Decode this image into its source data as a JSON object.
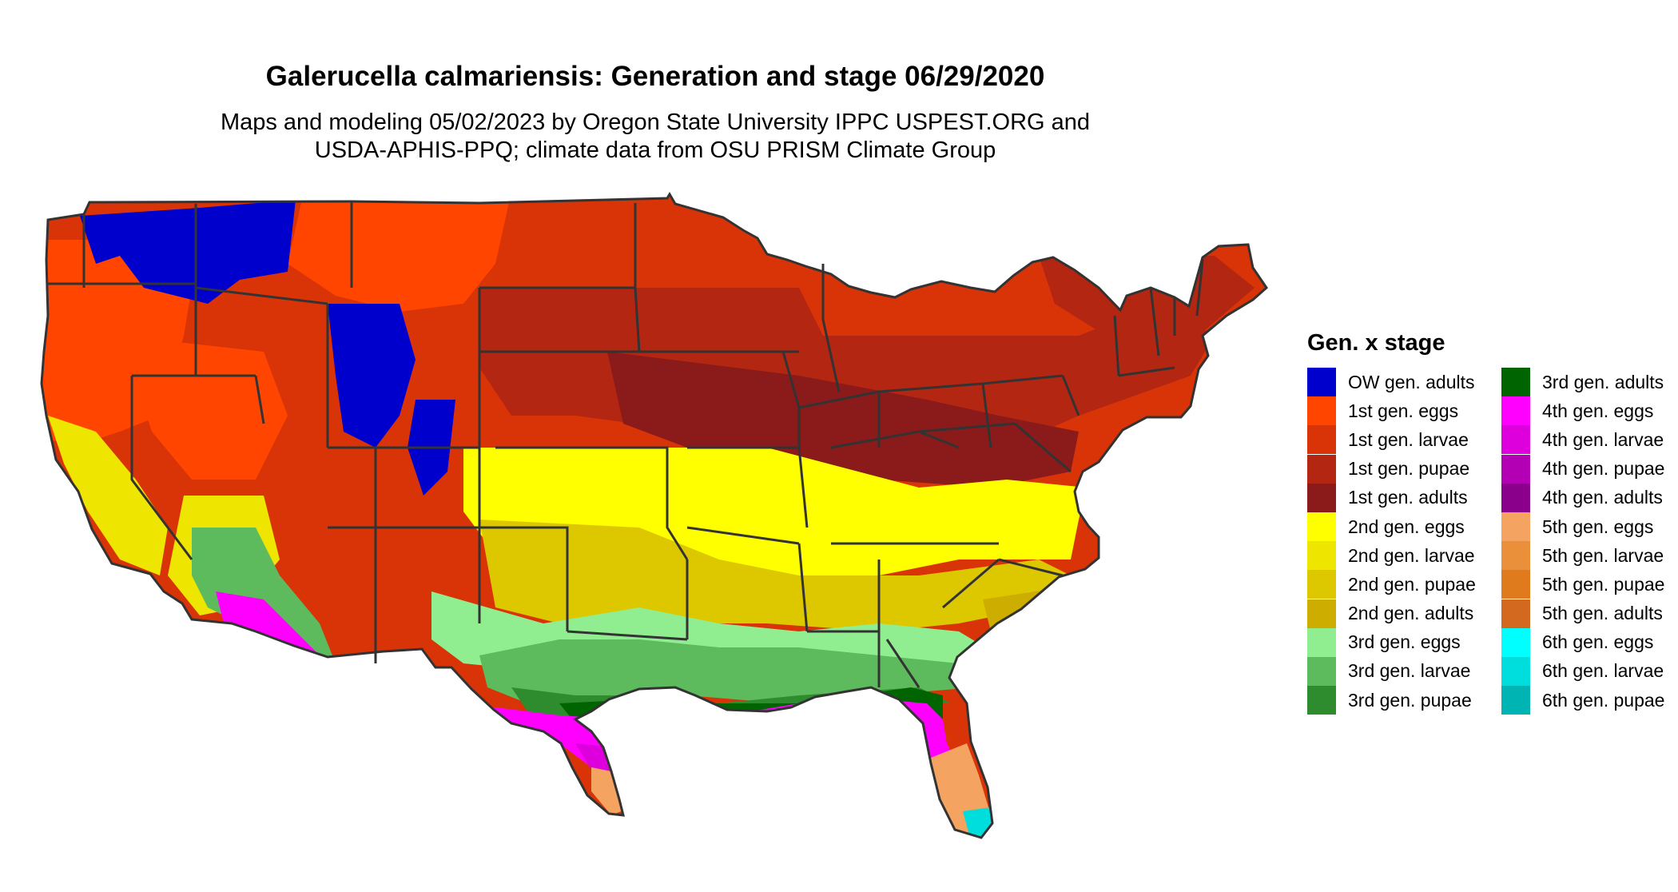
{
  "title": "Galerucella calmariensis: Generation and stage 06/29/2020",
  "subtitle_lines": [
    "Maps and modeling 05/02/2023 by Oregon State University IPPC USPEST.ORG and",
    "USDA-APHIS-PPQ; climate data from OSU PRISM Climate Group"
  ],
  "legend": {
    "title": "Gen. x stage",
    "columns": [
      [
        {
          "label": "OW gen. adults",
          "color": "#0000CD"
        },
        {
          "label": "1st gen. eggs",
          "color": "#FF4500"
        },
        {
          "label": "1st gen. larvae",
          "color": "#D93308"
        },
        {
          "label": "1st gen. pupae",
          "color": "#B22612"
        },
        {
          "label": "1st gen. adults",
          "color": "#8B1A1A"
        },
        {
          "label": "2nd gen. eggs",
          "color": "#FFFF00"
        },
        {
          "label": "2nd gen. larvae",
          "color": "#EEE500"
        },
        {
          "label": "2nd gen. pupae",
          "color": "#DDC800"
        },
        {
          "label": "2nd gen. adults",
          "color": "#CDAD00"
        },
        {
          "label": "3rd gen. eggs",
          "color": "#90EE90"
        },
        {
          "label": "3rd gen. larvae",
          "color": "#5DBB5D"
        },
        {
          "label": "3rd gen. pupae",
          "color": "#2E8B2E"
        }
      ],
      [
        {
          "label": "3rd gen. adults",
          "color": "#006400"
        },
        {
          "label": "4th gen. eggs",
          "color": "#FF00FF"
        },
        {
          "label": "4th gen. larvae",
          "color": "#DD00DD"
        },
        {
          "label": "4th gen. pupae",
          "color": "#B400B4"
        },
        {
          "label": "4th gen. adults",
          "color": "#8B008B"
        },
        {
          "label": "5th gen. eggs",
          "color": "#F4A460"
        },
        {
          "label": "5th gen. larvae",
          "color": "#EA8F3A"
        },
        {
          "label": "5th gen. pupae",
          "color": "#DF7A1D"
        },
        {
          "label": "5th gen. adults",
          "color": "#D2691E"
        },
        {
          "label": "6th gen. eggs",
          "color": "#00FFFF"
        },
        {
          "label": "6th gen. larvae",
          "color": "#00DDDD"
        },
        {
          "label": "6th gen. pupae",
          "color": "#00B4B4"
        }
      ]
    ]
  },
  "map": {
    "border_color": "#333333"
  }
}
